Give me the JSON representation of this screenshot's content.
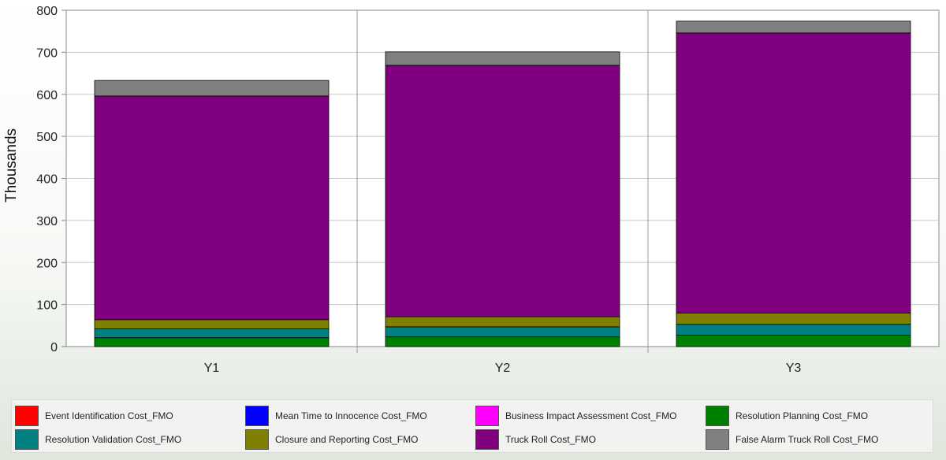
{
  "chart_data": {
    "type": "bar",
    "stacked": true,
    "ylabel": "Thousands",
    "xlabel": "",
    "ylim": [
      0,
      800
    ],
    "yticks": [
      0,
      100,
      200,
      300,
      400,
      500,
      600,
      700,
      800
    ],
    "grid": true,
    "categories": [
      "Y1",
      "Y2",
      "Y3"
    ],
    "legend_position": "bottom",
    "series": [
      {
        "name": "Event Identification Cost_FMO",
        "color": "#ff0000",
        "values": [
          0,
          0,
          0
        ]
      },
      {
        "name": "Mean Time to Innocence Cost_FMO",
        "color": "#0000ff",
        "values": [
          0,
          0,
          0
        ]
      },
      {
        "name": "Business Impact Assessment Cost_FMO",
        "color": "#ff00ff",
        "values": [
          0,
          0,
          0
        ]
      },
      {
        "name": "Resolution Planning Cost_FMO",
        "color": "#008000",
        "values": [
          21,
          23,
          27
        ]
      },
      {
        "name": "Resolution Validation Cost_FMO",
        "color": "#008080",
        "values": [
          21,
          24,
          26
        ]
      },
      {
        "name": "Closure and Reporting Cost_FMO",
        "color": "#808000",
        "values": [
          22,
          24,
          27
        ]
      },
      {
        "name": "Truck Roll Cost_FMO",
        "color": "#800080",
        "values": [
          532,
          598,
          666
        ]
      },
      {
        "name": "False Alarm Truck Roll Cost_FMO",
        "color": "#808080",
        "values": [
          37,
          32,
          28
        ]
      }
    ]
  }
}
